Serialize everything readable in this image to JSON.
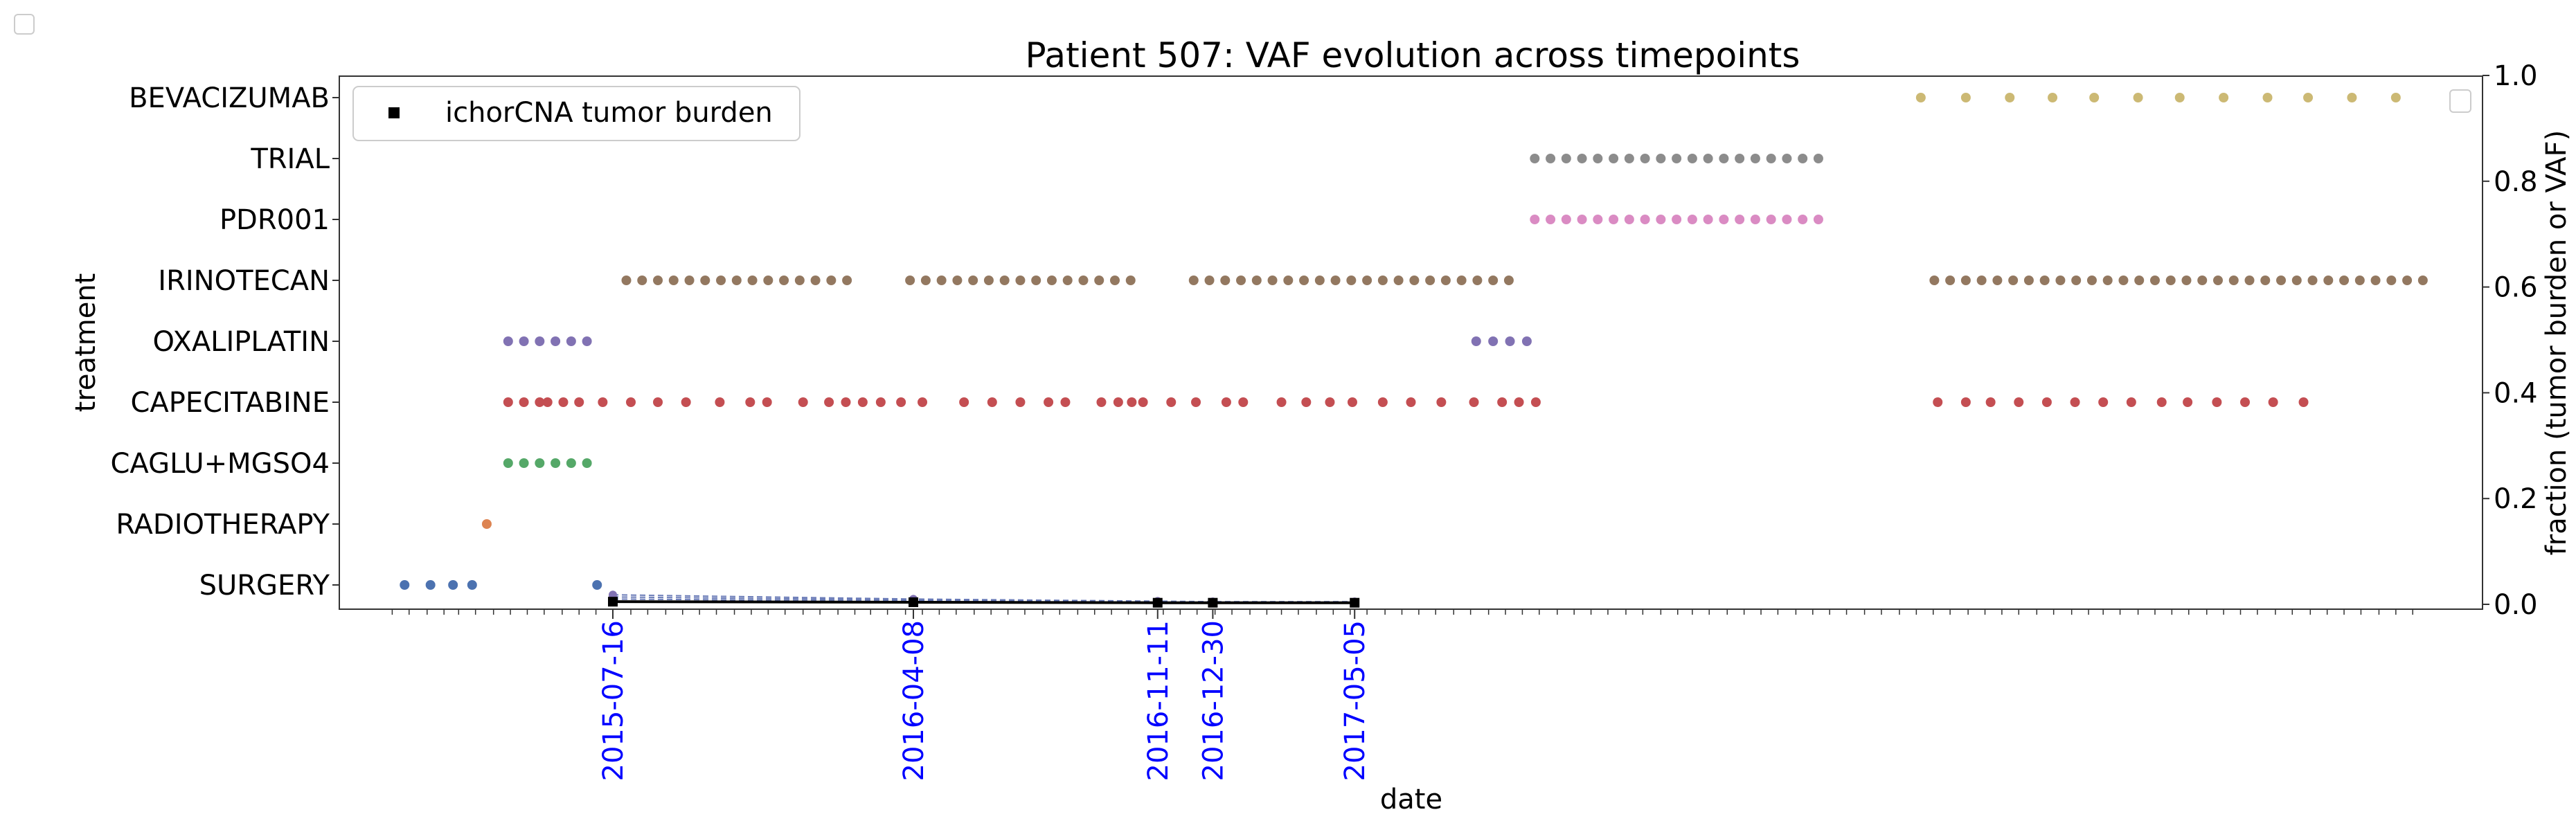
{
  "chart_data": {
    "type": "scatter",
    "title": "Patient 507: VAF evolution across timepoints",
    "xlabel": "date",
    "ylabel_left": "treatment",
    "ylabel_right": "fraction (tumor burden or VAF)",
    "right_ylim": [
      0,
      1
    ],
    "right_yticks": [
      "0.0",
      "0.2",
      "0.4",
      "0.6",
      "0.8",
      "1.0"
    ],
    "grid": false,
    "legend": {
      "placement": "top-left",
      "entries": [
        "ichorCNA tumor burden"
      ]
    },
    "treatment_order": [
      "SURGERY",
      "RADIOTHERAPY",
      "CAGLU+MGSO4",
      "CAPECITABINE",
      "OXALIPLATIN",
      "IRINOTECAN",
      "PDR001",
      "TRIAL",
      "BEVACIZUMAB"
    ],
    "treatment_colors": {
      "SURGERY": "#4c72b0",
      "RADIOTHERAPY": "#dd8452",
      "CAGLU+MGSO4": "#55a868",
      "CAPECITABINE": "#c44e52",
      "OXALIPLATIN": "#8172b3",
      "IRINOTECAN": "#937860",
      "PDR001": "#da8bc3",
      "TRIAL": "#8c8c8c",
      "BEVACIZUMAB": "#ccb974"
    },
    "x_range": [
      "2014-11-15",
      "2020-02-01"
    ],
    "timepoint_color": "#0000ff",
    "timepoints": [
      "2015-07-16",
      "2016-04-08",
      "2016-11-11",
      "2016-12-30",
      "2017-05-05"
    ],
    "tumor_burden": [
      {
        "date": "2015-07-16",
        "value": 0.005
      },
      {
        "date": "2016-04-08",
        "value": 0.004
      },
      {
        "date": "2016-11-11",
        "value": 0.003
      },
      {
        "date": "2016-12-30",
        "value": 0.003
      },
      {
        "date": "2017-05-05",
        "value": 0.003
      }
    ],
    "vaf_series": [
      {
        "values": [
          0.018,
          0.01,
          0.006,
          0.005,
          0.005
        ]
      },
      {
        "values": [
          0.014,
          0.008,
          0.005,
          0.004,
          0.004
        ]
      },
      {
        "values": [
          0.01,
          0.006,
          0.004,
          0.003,
          0.003
        ]
      }
    ],
    "treatments": [
      {
        "name": "SURGERY",
        "dates": [
          "2015-01-12",
          "2015-02-04",
          "2015-02-24",
          "2015-03-13",
          "2015-07-02"
        ]
      },
      {
        "name": "RADIOTHERAPY",
        "dates": [
          "2015-03-26"
        ]
      },
      {
        "name": "CAGLU+MGSO4",
        "dates": [
          "2015-04-14",
          "2015-04-28",
          "2015-05-12",
          "2015-05-26",
          "2015-06-09",
          "2015-06-23"
        ]
      },
      {
        "name": "CAPECITABINE",
        "dates": [
          "2015-04-14",
          "2015-04-28",
          "2015-05-12",
          "2015-05-19",
          "2015-06-02",
          "2015-06-16",
          "2015-07-07",
          "2015-08-01",
          "2015-08-25",
          "2015-09-19",
          "2015-10-19",
          "2015-11-15",
          "2015-11-30",
          "2016-01-01",
          "2016-01-24",
          "2016-02-08",
          "2016-02-23",
          "2016-03-10",
          "2016-03-28",
          "2016-04-16",
          "2016-05-23",
          "2016-06-17",
          "2016-07-12",
          "2016-08-06",
          "2016-08-21",
          "2016-09-22",
          "2016-10-07",
          "2016-10-19",
          "2016-10-29",
          "2016-11-23",
          "2016-12-15",
          "2017-01-11",
          "2017-01-26",
          "2017-03-01",
          "2017-03-23",
          "2017-04-13",
          "2017-05-03",
          "2017-05-30",
          "2017-06-24",
          "2017-07-21",
          "2017-08-19",
          "2017-09-13",
          "2017-09-28",
          "2017-10-13",
          "2018-10-05",
          "2018-10-30",
          "2018-11-21",
          "2018-12-16",
          "2019-01-10",
          "2019-02-04",
          "2019-03-01",
          "2019-03-26",
          "2019-04-22",
          "2019-05-15",
          "2019-06-10",
          "2019-07-05",
          "2019-07-30",
          "2019-08-26"
        ]
      },
      {
        "name": "OXALIPLATIN",
        "dates": [
          "2015-04-14",
          "2015-04-28",
          "2015-05-12",
          "2015-05-26",
          "2015-06-09",
          "2015-06-23",
          "2017-08-21",
          "2017-09-05",
          "2017-09-20",
          "2017-10-05"
        ]
      },
      {
        "name": "IRINOTECAN",
        "dates": [
          "2015-07-28",
          "2015-08-11",
          "2015-08-25",
          "2015-09-08",
          "2015-09-22",
          "2015-10-06",
          "2015-10-20",
          "2015-11-03",
          "2015-11-17",
          "2015-12-01",
          "2015-12-15",
          "2015-12-29",
          "2016-01-12",
          "2016-01-26",
          "2016-02-09",
          "2016-04-05",
          "2016-04-19",
          "2016-05-03",
          "2016-05-17",
          "2016-05-31",
          "2016-06-14",
          "2016-06-28",
          "2016-07-12",
          "2016-07-26",
          "2016-08-09",
          "2016-08-23",
          "2016-09-06",
          "2016-09-20",
          "2016-10-04",
          "2016-10-18",
          "2016-12-13",
          "2016-12-27",
          "2017-01-10",
          "2017-01-24",
          "2017-02-07",
          "2017-02-21",
          "2017-03-07",
          "2017-03-21",
          "2017-04-04",
          "2017-04-18",
          "2017-05-02",
          "2017-05-16",
          "2017-05-30",
          "2017-06-13",
          "2017-06-27",
          "2017-07-11",
          "2017-07-25",
          "2017-08-08",
          "2017-08-22",
          "2017-09-05",
          "2017-09-19",
          "2018-10-02",
          "2018-10-16",
          "2018-10-30",
          "2018-11-13",
          "2018-11-27",
          "2018-12-11",
          "2018-12-25",
          "2019-01-08",
          "2019-01-22",
          "2019-02-05",
          "2019-02-19",
          "2019-03-05",
          "2019-03-19",
          "2019-04-02",
          "2019-04-16",
          "2019-04-30",
          "2019-05-14",
          "2019-05-28",
          "2019-06-11",
          "2019-06-25",
          "2019-07-09",
          "2019-07-23",
          "2019-08-06",
          "2019-08-20",
          "2019-09-03",
          "2019-09-17",
          "2019-10-01",
          "2019-10-15",
          "2019-10-29",
          "2019-11-12",
          "2019-11-26",
          "2019-12-10"
        ]
      },
      {
        "name": "PDR001",
        "dates": [
          "2017-10-12",
          "2017-10-26",
          "2017-11-09",
          "2017-11-23",
          "2017-12-07",
          "2017-12-21",
          "2018-01-04",
          "2018-01-18",
          "2018-02-01",
          "2018-02-15",
          "2018-03-01",
          "2018-03-15",
          "2018-03-29",
          "2018-04-12",
          "2018-04-26",
          "2018-05-10",
          "2018-05-24",
          "2018-06-07",
          "2018-06-21"
        ]
      },
      {
        "name": "TRIAL",
        "dates": [
          "2017-10-12",
          "2017-10-26",
          "2017-11-09",
          "2017-11-23",
          "2017-12-07",
          "2017-12-21",
          "2018-01-04",
          "2018-01-18",
          "2018-02-01",
          "2018-02-15",
          "2018-03-01",
          "2018-03-15",
          "2018-03-29",
          "2018-04-12",
          "2018-04-26",
          "2018-05-10",
          "2018-05-24",
          "2018-06-07",
          "2018-06-21"
        ]
      },
      {
        "name": "BEVACIZUMAB",
        "dates": [
          "2018-09-20",
          "2018-10-30",
          "2018-12-08",
          "2019-01-15",
          "2019-02-21",
          "2019-04-01",
          "2019-05-08",
          "2019-06-16",
          "2019-07-25",
          "2019-08-30",
          "2019-10-08",
          "2019-11-16"
        ]
      }
    ]
  }
}
